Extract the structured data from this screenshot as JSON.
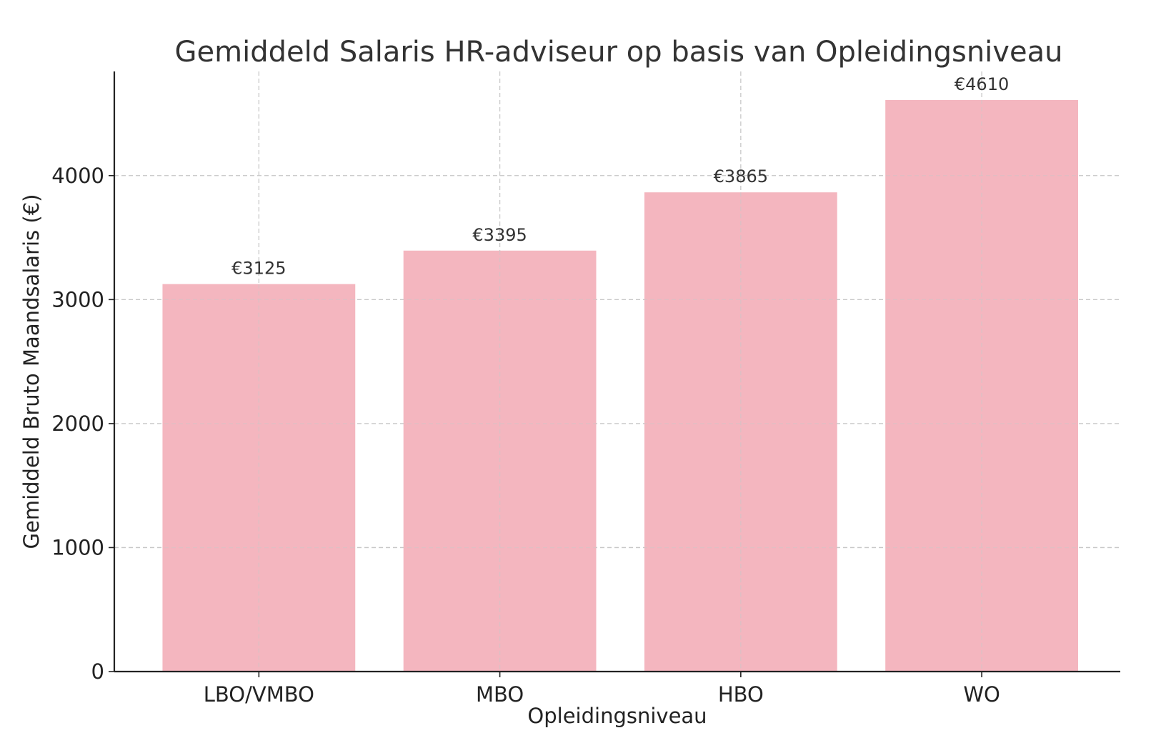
{
  "chart_data": {
    "type": "bar",
    "title": "Gemiddeld Salaris HR-adviseur op basis van Opleidingsniveau",
    "xlabel": "Opleidingsniveau",
    "ylabel": "Gemiddeld Bruto Maandsalaris (€)",
    "categories": [
      "LBO/VMBO",
      "MBO",
      "HBO",
      "WO"
    ],
    "values": [
      3125,
      3395,
      3865,
      4610
    ],
    "data_labels": [
      "€3125",
      "€3395",
      "€3865",
      "€4610"
    ],
    "yticks": [
      0,
      1000,
      2000,
      3000,
      4000
    ],
    "ylim": [
      0,
      4840
    ],
    "grid": true,
    "bar_color": "#f4b6bf"
  }
}
